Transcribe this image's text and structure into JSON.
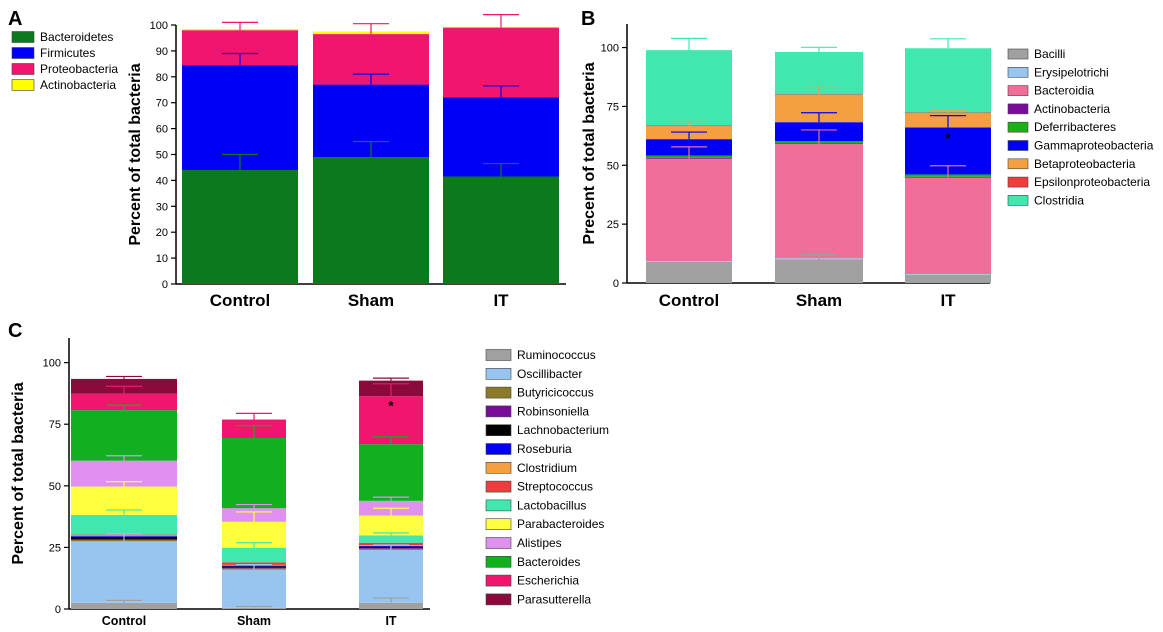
{
  "chart_data": [
    {
      "panel": "A",
      "type": "bar",
      "stacked": true,
      "ylabel": "Percent of total bacteria",
      "ylim": [
        0,
        100
      ],
      "yticks": [
        0,
        10,
        20,
        30,
        40,
        50,
        60,
        70,
        80,
        90,
        100
      ],
      "categories": [
        "Control",
        "Sham",
        "IT"
      ],
      "legend_position": "top-left",
      "series": [
        {
          "name": "Bacteroidetes",
          "color": "#0a7a1c",
          "values": [
            44,
            49,
            41.5
          ],
          "err": [
            6,
            6,
            5
          ]
        },
        {
          "name": "Firmicutes",
          "color": "#0000f5",
          "values": [
            40.5,
            28,
            30.5
          ],
          "err": [
            4.5,
            4,
            4.5
          ]
        },
        {
          "name": "Proteobacteria",
          "color": "#f0166e",
          "values": [
            13.5,
            19.5,
            27
          ],
          "err": [
            3,
            4,
            5
          ]
        },
        {
          "name": "Actinobacteria",
          "color": "#ffff00",
          "values": [
            0.5,
            1,
            0.3
          ],
          "err": [
            0,
            0,
            0
          ]
        }
      ]
    },
    {
      "panel": "B",
      "type": "bar",
      "stacked": true,
      "ylabel": "Precent of total bacteria",
      "ylim": [
        0,
        110
      ],
      "yticks": [
        0,
        25,
        50,
        75,
        100
      ],
      "categories": [
        "Control",
        "Sham",
        "IT"
      ],
      "legend_position": "right",
      "series": [
        {
          "name": "Bacilli",
          "color": "#a0a0a0",
          "values": [
            9,
            10,
            3.5
          ],
          "err": [
            0,
            2,
            0
          ]
        },
        {
          "name": "Erysipelotrichi",
          "color": "#98c4f0",
          "values": [
            0.3,
            0.5,
            0.3
          ],
          "err": [
            0,
            0,
            0
          ]
        },
        {
          "name": "Bacteroidia",
          "color": "#f06e9a",
          "values": [
            43.5,
            48.5,
            41
          ],
          "err": [
            5,
            6,
            5
          ]
        },
        {
          "name": "Actinobacteria",
          "color": "#7a0a9a",
          "values": [
            0.3,
            0.3,
            0.3
          ],
          "err": [
            0,
            0,
            0
          ]
        },
        {
          "name": "Deferribacteres",
          "color": "#1ab01a",
          "values": [
            1,
            1,
            1
          ],
          "err": [
            0,
            0,
            0
          ]
        },
        {
          "name": "Gammaproteobacteria",
          "color": "#0000f5",
          "values": [
            7,
            8,
            20
          ],
          "err": [
            3,
            4,
            5
          ]
        },
        {
          "name": "Betaproteobacteria",
          "color": "#f5a040",
          "values": [
            5.5,
            11.5,
            6
          ],
          "err": [
            2,
            4,
            1
          ]
        },
        {
          "name": "Epsilonproteobacteria",
          "color": "#f03c3c",
          "values": [
            0.3,
            0.3,
            0.3
          ],
          "err": [
            0,
            0,
            0
          ]
        },
        {
          "name": "Clostridia",
          "color": "#40e8b0",
          "values": [
            32,
            18,
            27.3
          ],
          "err": [
            5,
            2,
            4
          ]
        }
      ],
      "annotations": [
        {
          "category": "IT",
          "text": "*",
          "y": 62
        }
      ]
    },
    {
      "panel": "C",
      "type": "bar",
      "stacked": true,
      "ylabel": "Percent of total bacteria",
      "ylim": [
        0,
        110
      ],
      "yticks": [
        0,
        25,
        50,
        75,
        100
      ],
      "categories": [
        "Control",
        "Sham",
        "IT"
      ],
      "legend_position": "right",
      "series": [
        {
          "name": "Ruminococcus",
          "color": "#a0a0a0",
          "values": [
            2.5,
            0.5,
            2.5
          ],
          "err": [
            1,
            0.5,
            2
          ]
        },
        {
          "name": "Oscillibacter",
          "color": "#98c4f0",
          "values": [
            25,
            15.5,
            21.5
          ],
          "err": [
            3,
            2,
            2
          ]
        },
        {
          "name": "Butyricicoccus",
          "color": "#8b7a2a",
          "values": [
            0.5,
            0.5,
            0.5
          ],
          "err": [
            0,
            0,
            0
          ]
        },
        {
          "name": "Robinsoniella",
          "color": "#7a0a9a",
          "values": [
            0.3,
            0.3,
            0.3
          ],
          "err": [
            0,
            0,
            0
          ]
        },
        {
          "name": "Lachnobacterium",
          "color": "#000000",
          "values": [
            1,
            0.5,
            0.5
          ],
          "err": [
            0,
            0,
            0
          ]
        },
        {
          "name": "Roseburia",
          "color": "#0000f5",
          "values": [
            0.3,
            0.3,
            0.3
          ],
          "err": [
            0,
            0,
            0
          ]
        },
        {
          "name": "Clostridium",
          "color": "#f5a040",
          "values": [
            0.3,
            0.3,
            0.3
          ],
          "err": [
            0,
            0,
            0
          ]
        },
        {
          "name": "Streptococcus",
          "color": "#f03c3c",
          "values": [
            0.3,
            1,
            1
          ],
          "err": [
            0,
            0,
            0
          ]
        },
        {
          "name": "Lactobacillus",
          "color": "#40e8b0",
          "values": [
            8,
            6,
            3
          ],
          "err": [
            2,
            2,
            1
          ]
        },
        {
          "name": "Parabacteroides",
          "color": "#ffff40",
          "values": [
            11.5,
            10.5,
            8
          ],
          "err": [
            2,
            4,
            3
          ]
        },
        {
          "name": "Alistipes",
          "color": "#e090f0",
          "values": [
            10.5,
            5.5,
            6
          ],
          "err": [
            2,
            1.5,
            1.5
          ]
        },
        {
          "name": "Bacteroides",
          "color": "#10b020",
          "values": [
            20.5,
            28.5,
            23
          ],
          "err": [
            2,
            5,
            3
          ]
        },
        {
          "name": "Escherichia",
          "color": "#f0166e",
          "values": [
            6.7,
            7.5,
            19.5
          ],
          "err": [
            3,
            2.5,
            5
          ]
        },
        {
          "name": "Parasutterella",
          "color": "#8a0a3c",
          "values": [
            6,
            0,
            6.3
          ],
          "err": [
            1,
            0,
            1
          ]
        }
      ],
      "annotations": [
        {
          "category": "IT",
          "text": "*",
          "y": 83
        }
      ]
    }
  ]
}
